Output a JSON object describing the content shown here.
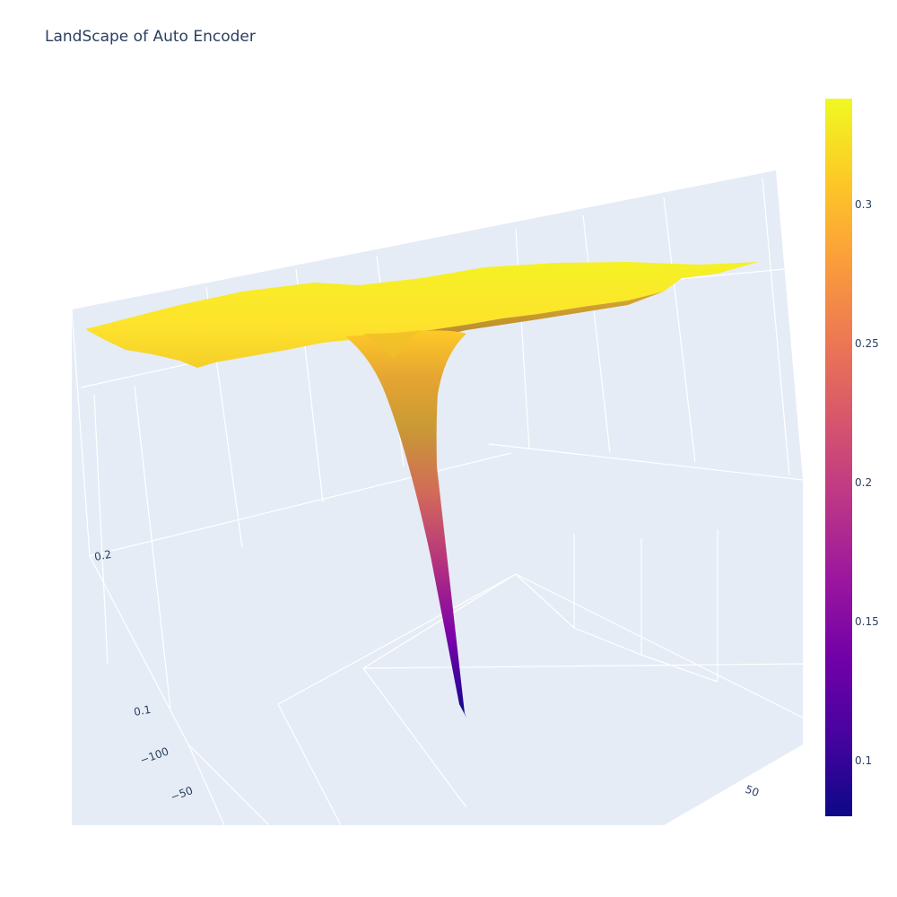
{
  "chart_data": {
    "type": "surface",
    "title": "LandScape of Auto Encoder",
    "x_ticks": [
      -100,
      -50
    ],
    "y_ticks": [
      50
    ],
    "z_ticks": [
      0.1,
      0.2
    ],
    "colorscale": "plasma",
    "colorbar": {
      "range": [
        0.08,
        0.338
      ],
      "ticks": [
        0.1,
        0.15,
        0.2,
        0.25,
        0.3
      ]
    },
    "surface_summary": {
      "plateau_value": 0.33,
      "minimum_value": 0.08,
      "shape": "flat plateau with one deep narrow funnel-shaped valley"
    },
    "colors": {
      "scene_bg": "#e5ecf6",
      "grid": "#ffffff",
      "text": "#2a3f5f"
    }
  }
}
